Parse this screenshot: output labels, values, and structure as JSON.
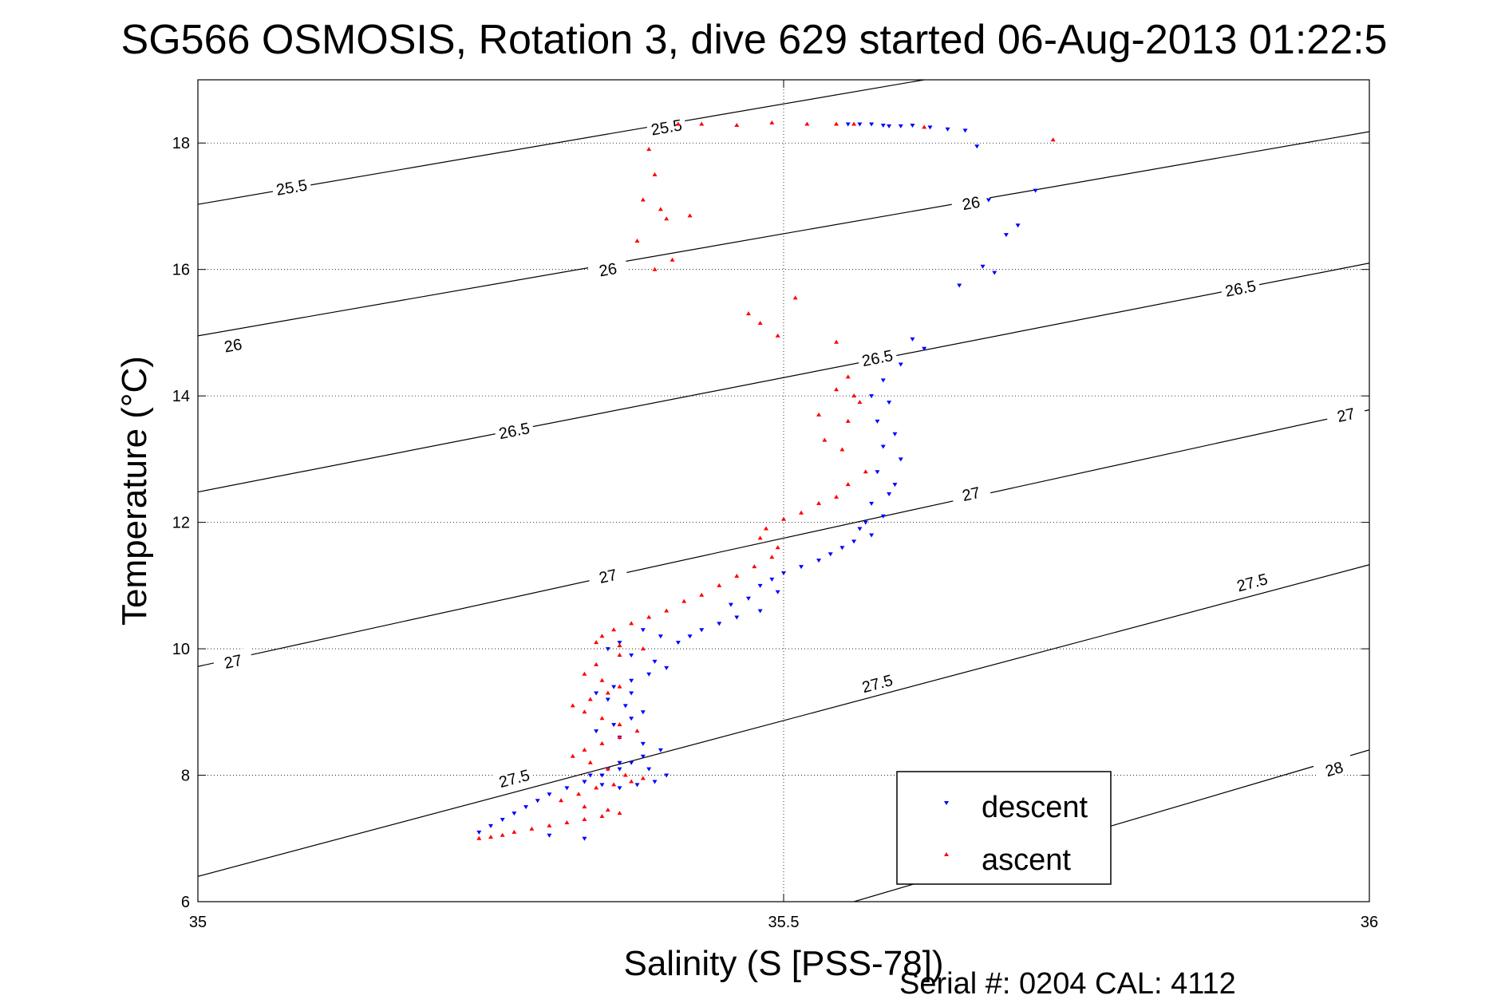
{
  "chart_data": {
    "type": "scatter",
    "title": "SG566 OSMOSIS, Rotation 3, dive 629 started 06-Aug-2013 01:22:5",
    "xlabel": "Salinity (S [PSS-78])",
    "ylabel": "Temperature (°C)",
    "xlim": [
      35,
      36
    ],
    "ylim": [
      6,
      19
    ],
    "xticks": [
      35,
      35.5,
      36
    ],
    "xtick_labels": [
      "35",
      "35.5",
      "36"
    ],
    "yticks": [
      6,
      8,
      10,
      12,
      14,
      16,
      18
    ],
    "ytick_labels": [
      "6",
      "8",
      "10",
      "12",
      "14",
      "16",
      "18"
    ],
    "grid": true,
    "legend_position": "lower-right",
    "footer": "Serial #: 0204  CAL: 4112",
    "contours": [
      {
        "label": "25.5",
        "points": [
          [
            35.0,
            17.03
          ],
          [
            35.62,
            19.0
          ]
        ],
        "label_positions": [
          [
            35.08,
            17.3
          ],
          [
            35.4,
            18.25
          ]
        ]
      },
      {
        "label": "26",
        "points": [
          [
            35.0,
            14.95
          ],
          [
            36.0,
            18.18
          ]
        ],
        "label_positions": [
          [
            35.03,
            14.8
          ],
          [
            35.35,
            16.0
          ],
          [
            35.66,
            17.05
          ]
        ]
      },
      {
        "label": "26.5",
        "points": [
          [
            35.0,
            12.48
          ],
          [
            36.0,
            16.1
          ]
        ],
        "label_positions": [
          [
            35.27,
            13.45
          ],
          [
            35.58,
            14.6
          ],
          [
            35.89,
            15.7
          ]
        ]
      },
      {
        "label": "27",
        "points": [
          [
            35.0,
            9.72
          ],
          [
            36.0,
            13.78
          ]
        ],
        "label_positions": [
          [
            35.03,
            9.8
          ],
          [
            35.35,
            11.15
          ],
          [
            35.66,
            12.45
          ],
          [
            35.98,
            13.7
          ]
        ]
      },
      {
        "label": "27.5",
        "points": [
          [
            35.0,
            6.4
          ],
          [
            36.0,
            11.33
          ]
        ],
        "label_positions": [
          [
            35.27,
            7.95
          ],
          [
            35.58,
            9.45
          ],
          [
            35.9,
            11.05
          ]
        ]
      },
      {
        "label": "28",
        "points": [
          [
            35.56,
            6.0
          ],
          [
            36.0,
            8.4
          ]
        ],
        "label_positions": [
          [
            35.97,
            8.1
          ]
        ]
      }
    ],
    "series": [
      {
        "name": "descent",
        "color": "#0000ff",
        "marker": "triangle-down",
        "x": [
          35.555,
          35.565,
          35.575,
          35.585,
          35.59,
          35.6,
          35.61,
          35.625,
          35.64,
          35.655,
          35.665,
          35.675,
          35.69,
          35.7,
          35.715,
          35.67,
          35.65,
          35.68,
          35.61,
          35.6,
          35.62,
          35.585,
          35.575,
          35.59,
          35.58,
          35.595,
          35.585,
          35.6,
          35.58,
          35.595,
          35.59,
          35.575,
          35.585,
          35.57,
          35.565,
          35.575,
          35.56,
          35.55,
          35.54,
          35.53,
          35.515,
          35.5,
          35.49,
          35.48,
          35.495,
          35.47,
          35.455,
          35.48,
          35.46,
          35.445,
          35.43,
          35.42,
          35.41,
          35.395,
          35.38,
          35.36,
          35.35,
          35.37,
          35.39,
          35.4,
          35.385,
          35.37,
          35.355,
          35.34,
          35.35,
          35.365,
          35.38,
          35.37,
          35.355,
          35.34,
          35.36,
          35.38,
          35.395,
          35.38,
          35.36,
          35.35,
          35.335,
          35.33,
          35.345,
          35.36,
          35.375,
          35.39,
          35.4,
          35.385,
          35.37,
          35.36,
          35.345,
          35.33,
          35.315,
          35.3,
          35.29,
          35.28,
          35.27,
          35.26,
          35.25,
          35.24,
          35.3,
          35.33,
          35.37
        ],
        "y": [
          18.3,
          18.3,
          18.3,
          18.28,
          18.27,
          18.27,
          18.28,
          18.25,
          18.22,
          18.2,
          17.95,
          17.1,
          16.55,
          16.7,
          17.25,
          16.05,
          15.75,
          15.95,
          14.9,
          14.5,
          14.75,
          14.25,
          14.0,
          13.9,
          13.6,
          13.4,
          13.2,
          13.0,
          12.8,
          12.6,
          12.45,
          12.3,
          12.1,
          12.0,
          11.9,
          11.8,
          11.7,
          11.6,
          11.5,
          11.4,
          11.3,
          11.2,
          11.1,
          11.0,
          10.9,
          10.8,
          10.7,
          10.6,
          10.5,
          10.4,
          10.3,
          10.2,
          10.1,
          10.2,
          10.3,
          10.1,
          10.0,
          9.9,
          9.8,
          9.7,
          9.6,
          9.5,
          9.4,
          9.3,
          9.2,
          9.1,
          9.0,
          8.9,
          8.8,
          8.7,
          8.6,
          8.5,
          8.4,
          8.3,
          8.2,
          8.1,
          8.0,
          7.9,
          7.85,
          7.8,
          7.85,
          7.9,
          8.0,
          8.1,
          8.2,
          8.1,
          8.0,
          7.9,
          7.8,
          7.7,
          7.6,
          7.5,
          7.4,
          7.3,
          7.2,
          7.1,
          7.05,
          7.0,
          9.3
        ]
      },
      {
        "name": "ascent",
        "color": "#ff0000",
        "marker": "triangle-up",
        "x": [
          35.41,
          35.43,
          35.46,
          35.49,
          35.52,
          35.545,
          35.56,
          35.62,
          35.385,
          35.39,
          35.38,
          35.395,
          35.4,
          35.375,
          35.39,
          35.405,
          35.42,
          35.47,
          35.48,
          35.495,
          35.51,
          35.545,
          35.555,
          35.545,
          35.53,
          35.535,
          35.55,
          35.555,
          35.565,
          35.56,
          35.57,
          35.555,
          35.545,
          35.53,
          35.515,
          35.5,
          35.485,
          35.48,
          35.495,
          35.49,
          35.475,
          35.46,
          35.445,
          35.43,
          35.415,
          35.4,
          35.385,
          35.37,
          35.355,
          35.345,
          35.34,
          35.36,
          35.38,
          35.36,
          35.34,
          35.33,
          35.345,
          35.36,
          35.35,
          35.335,
          35.32,
          35.33,
          35.345,
          35.36,
          35.375,
          35.36,
          35.345,
          35.33,
          35.32,
          35.335,
          35.35,
          35.365,
          35.38,
          35.37,
          35.355,
          35.34,
          35.325,
          35.31,
          35.33,
          35.35,
          35.36,
          35.345,
          35.33,
          35.315,
          35.3,
          35.285,
          35.27,
          35.26,
          35.25,
          35.24,
          35.73
        ],
        "y": [
          18.3,
          18.3,
          18.28,
          18.32,
          18.3,
          18.3,
          18.3,
          18.25,
          17.9,
          17.5,
          17.1,
          16.95,
          16.8,
          16.45,
          16.0,
          16.15,
          16.85,
          15.3,
          15.15,
          14.95,
          15.55,
          14.85,
          14.3,
          14.1,
          13.7,
          13.3,
          13.15,
          13.6,
          13.9,
          14.0,
          12.8,
          12.6,
          12.4,
          12.3,
          12.15,
          12.05,
          11.9,
          11.75,
          11.6,
          11.45,
          11.3,
          11.15,
          11.0,
          10.85,
          10.75,
          10.6,
          10.5,
          10.4,
          10.3,
          10.2,
          10.1,
          10.05,
          10.0,
          9.9,
          9.75,
          9.6,
          9.5,
          9.4,
          9.3,
          9.2,
          9.1,
          9.0,
          8.9,
          8.8,
          8.7,
          8.6,
          8.5,
          8.4,
          8.3,
          8.2,
          8.1,
          8.0,
          7.95,
          7.9,
          7.85,
          7.8,
          7.7,
          7.6,
          7.5,
          7.45,
          7.4,
          7.35,
          7.3,
          7.25,
          7.2,
          7.15,
          7.1,
          7.05,
          7.02,
          7.0,
          18.05
        ]
      }
    ]
  }
}
